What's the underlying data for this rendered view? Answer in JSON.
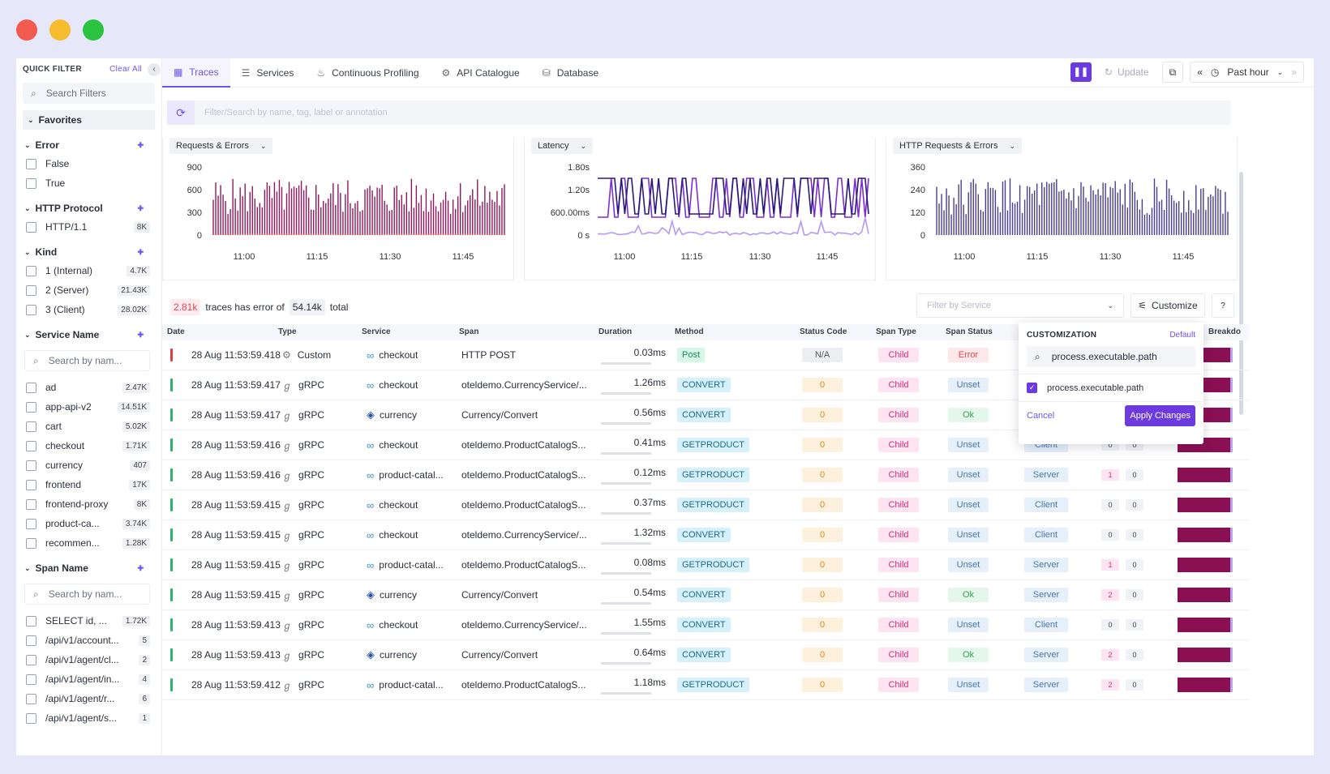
{
  "window": {
    "dot_colors": [
      "#f25a4f",
      "#f7bb2e",
      "#29c33f"
    ]
  },
  "sidebar": {
    "title": "QUICK FILTER",
    "clear_all": "Clear All",
    "search_placeholder": "Search Filters",
    "favorites": "Favorites",
    "groups": [
      {
        "title": "Error",
        "options": [
          {
            "label": "False",
            "count": ""
          },
          {
            "label": "True",
            "count": ""
          }
        ]
      },
      {
        "title": "HTTP Protocol",
        "options": [
          {
            "label": "HTTP/1.1",
            "count": "8K"
          }
        ]
      },
      {
        "title": "Kind",
        "options": [
          {
            "label": "1 (Internal)",
            "count": "4.7K"
          },
          {
            "label": "2 (Server)",
            "count": "21.43K"
          },
          {
            "label": "3 (Client)",
            "count": "28.02K"
          }
        ]
      },
      {
        "title": "Service Name",
        "search": "Search by nam...",
        "options": [
          {
            "label": "ad",
            "count": "2.47K"
          },
          {
            "label": "app-api-v2",
            "count": "14.51K"
          },
          {
            "label": "cart",
            "count": "5.02K"
          },
          {
            "label": "checkout",
            "count": "1.71K"
          },
          {
            "label": "currency",
            "count": "407"
          },
          {
            "label": "frontend",
            "count": "17K"
          },
          {
            "label": "frontend-proxy",
            "count": "8K"
          },
          {
            "label": "product-ca...",
            "count": "3.74K"
          },
          {
            "label": "recommen...",
            "count": "1.28K"
          }
        ]
      },
      {
        "title": "Span Name",
        "search": "Search by nam...",
        "options": [
          {
            "label": "SELECT id, ...",
            "count": "1.72K"
          },
          {
            "label": "/api/v1/account...",
            "count": "5"
          },
          {
            "label": "/api/v1/agent/cl...",
            "count": "2"
          },
          {
            "label": "/api/v1/agent/in...",
            "count": "4"
          },
          {
            "label": "/api/v1/agent/r...",
            "count": "6"
          },
          {
            "label": "/api/v1/agent/s...",
            "count": "1"
          }
        ]
      }
    ]
  },
  "tabs": [
    {
      "label": "Traces",
      "icon": "grid-icon"
    },
    {
      "label": "Services",
      "icon": "list-icon"
    },
    {
      "label": "Continuous Profiling",
      "icon": "flame-icon"
    },
    {
      "label": "API Catalogue",
      "icon": "gear-icon"
    },
    {
      "label": "Database",
      "icon": "database-icon"
    }
  ],
  "toolbar": {
    "update": "Update",
    "time_range": "Past hour"
  },
  "search": {
    "placeholder": "Filter/Search by name, tag, label or annotation"
  },
  "charts": [
    {
      "title": "Requests & Errors",
      "yticks": [
        "900",
        "600",
        "300",
        "0"
      ],
      "xticks": [
        "11:00",
        "11:15",
        "11:30",
        "11:45"
      ],
      "color": "#8e1a5e"
    },
    {
      "title": "Latency",
      "yticks": [
        "1.80s",
        "1.20s",
        "600.00ms",
        "0 s"
      ],
      "xticks": [
        "11:00",
        "11:15",
        "11:30",
        "11:45"
      ],
      "color": "#7a2ed6"
    },
    {
      "title": "HTTP Requests & Errors",
      "yticks": [
        "360",
        "240",
        "120",
        "0"
      ],
      "xticks": [
        "11:00",
        "11:15",
        "11:30",
        "11:45"
      ],
      "color": "#4b3f8c"
    }
  ],
  "summary": {
    "errors": "2.81k",
    "text1": "traces has error of",
    "total": "54.14k",
    "text2": "total"
  },
  "filter_service": {
    "placeholder": "Filter by Service"
  },
  "customize_label": "Customize",
  "columns": [
    "Date",
    "Type",
    "Service",
    "Span",
    "Duration",
    "Method",
    "Status Code",
    "Span Type",
    "Span Status",
    "Breakdo"
  ],
  "rows": [
    {
      "date": "28 Aug 11:53:59.418",
      "type": "Custom",
      "service": "checkout",
      "svc_icon": "infinity-icon",
      "span": "HTTP POST",
      "duration": "0.03ms",
      "method": "Post",
      "status": "N/A",
      "span_type": "Child",
      "span_status": "Error",
      "kind": "",
      "m1": "",
      "m2": "",
      "err": true
    },
    {
      "date": "28 Aug 11:53:59.417",
      "type": "gRPC",
      "service": "checkout",
      "svc_icon": "infinity-icon",
      "span": "oteldemo.CurrencyService/...",
      "duration": "1.26ms",
      "method": "CONVERT",
      "status": "0",
      "span_type": "Child",
      "span_status": "Unset",
      "kind": "",
      "m1": "",
      "m2": "",
      "err": false
    },
    {
      "date": "28 Aug 11:53:59.417",
      "type": "gRPC",
      "service": "currency",
      "svc_icon": "c-icon",
      "span": "Currency/Convert",
      "duration": "0.56ms",
      "method": "CONVERT",
      "status": "0",
      "span_type": "Child",
      "span_status": "Ok",
      "kind": "",
      "m1": "",
      "m2": "",
      "err": false
    },
    {
      "date": "28 Aug 11:53:59.416",
      "type": "gRPC",
      "service": "checkout",
      "svc_icon": "infinity-icon",
      "span": "oteldemo.ProductCatalogS...",
      "duration": "0.41ms",
      "method": "GETPRODUCT",
      "status": "0",
      "span_type": "Child",
      "span_status": "Unset",
      "kind": "Client",
      "m1": "0",
      "m2": "0",
      "err": false
    },
    {
      "date": "28 Aug 11:53:59.416",
      "type": "gRPC",
      "service": "product-catal...",
      "svc_icon": "infinity-icon",
      "span": "oteldemo.ProductCatalogS...",
      "duration": "0.12ms",
      "method": "GETPRODUCT",
      "status": "0",
      "span_type": "Child",
      "span_status": "Unset",
      "kind": "Server",
      "m1": "1",
      "m2": "0",
      "err": false
    },
    {
      "date": "28 Aug 11:53:59.415",
      "type": "gRPC",
      "service": "checkout",
      "svc_icon": "infinity-icon",
      "span": "oteldemo.ProductCatalogS...",
      "duration": "0.37ms",
      "method": "GETPRODUCT",
      "status": "0",
      "span_type": "Child",
      "span_status": "Unset",
      "kind": "Client",
      "m1": "0",
      "m2": "0",
      "err": false
    },
    {
      "date": "28 Aug 11:53:59.415",
      "type": "gRPC",
      "service": "checkout",
      "svc_icon": "infinity-icon",
      "span": "oteldemo.CurrencyService/...",
      "duration": "1.32ms",
      "method": "CONVERT",
      "status": "0",
      "span_type": "Child",
      "span_status": "Unset",
      "kind": "Client",
      "m1": "0",
      "m2": "0",
      "err": false
    },
    {
      "date": "28 Aug 11:53:59.415",
      "type": "gRPC",
      "service": "product-catal...",
      "svc_icon": "infinity-icon",
      "span": "oteldemo.ProductCatalogS...",
      "duration": "0.08ms",
      "method": "GETPRODUCT",
      "status": "0",
      "span_type": "Child",
      "span_status": "Unset",
      "kind": "Server",
      "m1": "1",
      "m2": "0",
      "err": false
    },
    {
      "date": "28 Aug 11:53:59.415",
      "type": "gRPC",
      "service": "currency",
      "svc_icon": "c-icon",
      "span": "Currency/Convert",
      "duration": "0.54ms",
      "method": "CONVERT",
      "status": "0",
      "span_type": "Child",
      "span_status": "Ok",
      "kind": "Server",
      "m1": "2",
      "m2": "0",
      "err": false
    },
    {
      "date": "28 Aug 11:53:59.413",
      "type": "gRPC",
      "service": "checkout",
      "svc_icon": "infinity-icon",
      "span": "oteldemo.CurrencyService/...",
      "duration": "1.55ms",
      "method": "CONVERT",
      "status": "0",
      "span_type": "Child",
      "span_status": "Unset",
      "kind": "Client",
      "m1": "0",
      "m2": "0",
      "err": false
    },
    {
      "date": "28 Aug 11:53:59.413",
      "type": "gRPC",
      "service": "currency",
      "svc_icon": "c-icon",
      "span": "Currency/Convert",
      "duration": "0.64ms",
      "method": "CONVERT",
      "status": "0",
      "span_type": "Child",
      "span_status": "Ok",
      "kind": "Server",
      "m1": "2",
      "m2": "0",
      "err": false
    },
    {
      "date": "28 Aug 11:53:59.412",
      "type": "gRPC",
      "service": "product-catal...",
      "svc_icon": "infinity-icon",
      "span": "oteldemo.ProductCatalogS...",
      "duration": "1.18ms",
      "method": "GETPRODUCT",
      "status": "0",
      "span_type": "Child",
      "span_status": "Unset",
      "kind": "Server",
      "m1": "2",
      "m2": "0",
      "err": false
    }
  ],
  "customization": {
    "title": "CUSTOMIZATION",
    "default": "Default",
    "search_value": "process.executable.path",
    "option": "process.executable.path",
    "cancel": "Cancel",
    "apply": "Apply Changes"
  }
}
